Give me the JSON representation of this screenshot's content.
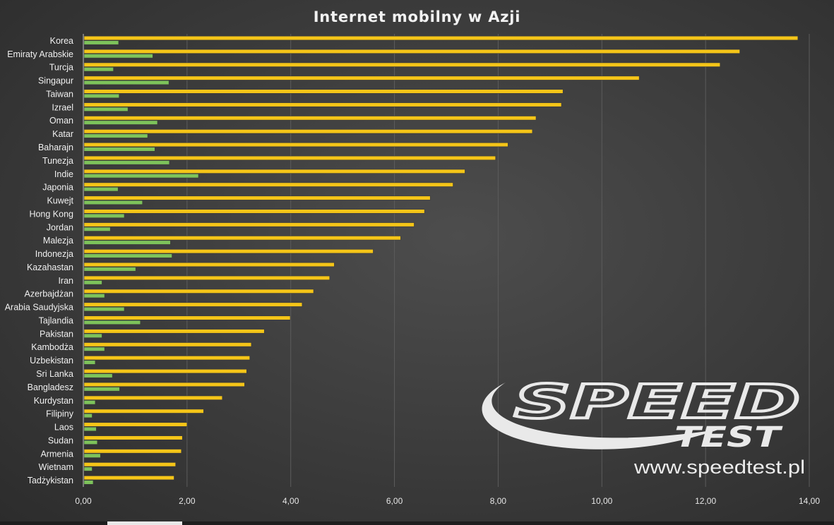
{
  "chart_data": {
    "type": "bar",
    "orientation": "horizontal",
    "title": "Internet mobilny w Azji",
    "categories": [
      "Korea",
      "Emiraty Arabskie",
      "Turcja",
      "Singapur",
      "Taiwan",
      "Izrael",
      "Oman",
      "Katar",
      "Baharajn",
      "Tunezja",
      "Indie",
      "Japonia",
      "Kuwejt",
      "Hong Kong",
      "Jordan",
      "Malezja",
      "Indonezja",
      "Kazahastan",
      "Iran",
      "Azerbajdżan",
      "Arabia Saudyjska",
      "Tajlandia",
      "Pakistan",
      "Kambodża",
      "Uzbekistan",
      "Sri Lanka",
      "Bangladesz",
      "Kurdystan",
      "Filipiny",
      "Laos",
      "Sudan",
      "Armenia",
      "Wietnam",
      "Tadżykistan"
    ],
    "series": [
      {
        "color": "#f5c518",
        "values": [
          13.78,
          12.66,
          12.28,
          10.72,
          9.25,
          9.22,
          8.73,
          8.66,
          8.19,
          7.95,
          7.36,
          7.13,
          6.69,
          6.58,
          6.38,
          6.12,
          5.59,
          4.84,
          4.75,
          4.44,
          4.22,
          3.99,
          3.49,
          3.24,
          3.21,
          3.15,
          3.11,
          2.68,
          2.32,
          2.0,
          1.91,
          1.89,
          1.78,
          1.75
        ]
      },
      {
        "color": "#7dc35b",
        "values": [
          0.68,
          1.34,
          0.58,
          1.65,
          0.69,
          0.86,
          1.43,
          1.24,
          1.38,
          1.66,
          2.22,
          0.67,
          1.14,
          0.79,
          0.52,
          1.68,
          1.71,
          1.01,
          0.36,
          0.41,
          0.79,
          1.1,
          0.36,
          0.41,
          0.23,
          0.56,
          0.7,
          0.23,
          0.17,
          0.25,
          0.27,
          0.33,
          0.17,
          0.19
        ]
      }
    ],
    "xlim": [
      0,
      14
    ],
    "xticks": [
      0,
      2,
      4,
      6,
      8,
      10,
      12,
      14
    ],
    "xtick_labels": [
      "0,00",
      "2,00",
      "4,00",
      "6,00",
      "8,00",
      "10,00",
      "12,00",
      "14,00"
    ],
    "grid": "vertical",
    "legend": "none"
  },
  "watermark": {
    "logo_text": "SPEED",
    "logo_sub": "TEST",
    "url": "www.speedtest.pl"
  }
}
